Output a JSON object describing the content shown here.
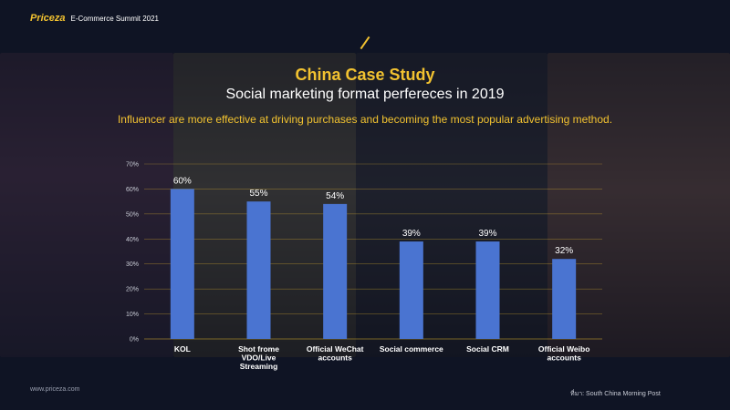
{
  "header": {
    "brand": "Priceza",
    "event": "E-Commerce Summit 2021"
  },
  "slide": {
    "title": "China Case Study",
    "subtitle": "Social marketing format perfereces in 2019",
    "description": "Influencer are more effective at driving purchases and becoming the most popular advertising method."
  },
  "footer": {
    "website": "www.priceza.com",
    "source": "ที่มา: South China Morning Post"
  },
  "colors": {
    "accent": "#f2c230",
    "bar": "#4a74d1",
    "gridline": "#f2c230",
    "text": "#ffffff"
  },
  "chart_data": {
    "type": "bar",
    "categories": [
      "KOL",
      "Shot frome VDO/Live Streaming",
      "Official WeChat accounts",
      "Social commerce",
      "Social CRM",
      "Official Weibo accounts"
    ],
    "category_lines": [
      [
        "KOL"
      ],
      [
        "Shot frome",
        "VDO/Live",
        "Streaming"
      ],
      [
        "Official WeChat",
        "accounts"
      ],
      [
        "Social commerce"
      ],
      [
        "Social CRM"
      ],
      [
        "Official Weibo",
        "accounts"
      ]
    ],
    "values": [
      60,
      55,
      54,
      39,
      39,
      32
    ],
    "data_labels": [
      "60%",
      "55%",
      "54%",
      "39%",
      "39%",
      "32%"
    ],
    "yticks": [
      0,
      10,
      20,
      30,
      40,
      50,
      60,
      70
    ],
    "ytick_labels": [
      "0%",
      "10%",
      "20%",
      "30%",
      "40%",
      "50%",
      "60%",
      "70%"
    ],
    "ylim": [
      0,
      70
    ],
    "grid": true,
    "unit": "%"
  }
}
